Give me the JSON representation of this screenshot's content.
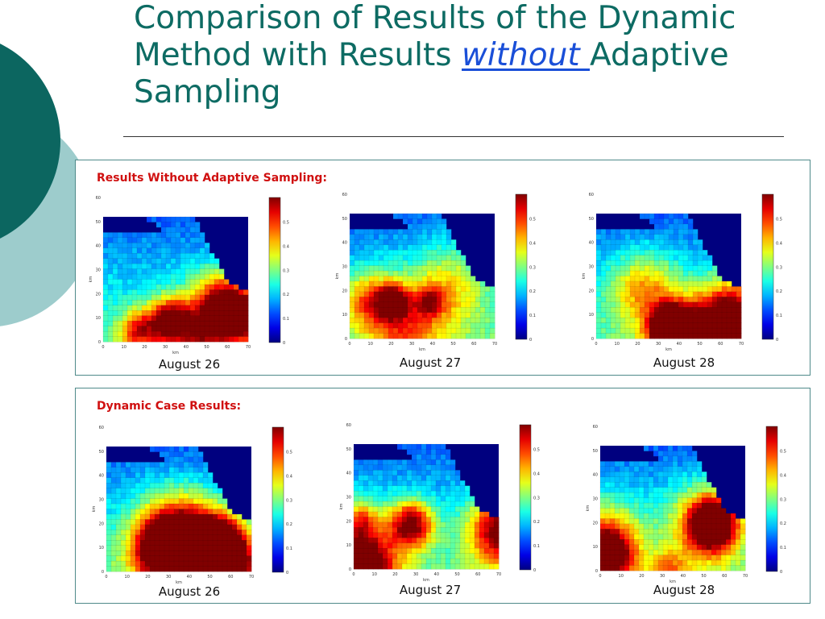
{
  "slide": {
    "title_lead": "Comparison of Results of the Dynamic Method with Results ",
    "title_emph": "without ",
    "title_tail": "Adaptive Sampling"
  },
  "panels": [
    {
      "heading": "Results Without Adaptive Sampling:",
      "maps": [
        {
          "caption": "August 26",
          "y_ticks": [
            "60",
            "50",
            "40",
            "30",
            "20",
            "10",
            "0"
          ],
          "x_ticks": [
            "0",
            "10",
            "20",
            "30",
            "40",
            "50",
            "60",
            "70"
          ],
          "xlabel": "km",
          "ylabel": "km",
          "colorbar_ticks": [
            "0.5",
            "0.4",
            "0.3",
            "0.2",
            "0.1",
            "0"
          ]
        },
        {
          "caption": "August 27",
          "y_ticks": [
            "60",
            "50",
            "40",
            "30",
            "20",
            "10",
            "0"
          ],
          "x_ticks": [
            "0",
            "10",
            "20",
            "30",
            "40",
            "50",
            "60",
            "70"
          ],
          "xlabel": "km",
          "ylabel": "km",
          "colorbar_ticks": [
            "0.5",
            "0.4",
            "0.3",
            "0.2",
            "0.1",
            "0"
          ]
        },
        {
          "caption": "August 28",
          "y_ticks": [
            "60",
            "50",
            "40",
            "30",
            "20",
            "10",
            "0"
          ],
          "x_ticks": [
            "0",
            "10",
            "20",
            "30",
            "40",
            "50",
            "60",
            "70"
          ],
          "xlabel": "km",
          "ylabel": "km",
          "colorbar_ticks": [
            "0.5",
            "0.4",
            "0.3",
            "0.2",
            "0.1",
            "0"
          ]
        }
      ]
    },
    {
      "heading": "Dynamic Case Results:",
      "maps": [
        {
          "caption": "August 26",
          "y_ticks": [
            "60",
            "50",
            "40",
            "30",
            "20",
            "10",
            "0"
          ],
          "x_ticks": [
            "0",
            "10",
            "20",
            "30",
            "40",
            "50",
            "60",
            "70"
          ],
          "xlabel": "km",
          "ylabel": "km",
          "colorbar_ticks": [
            "0.5",
            "0.4",
            "0.3",
            "0.2",
            "0.1",
            "0"
          ]
        },
        {
          "caption": "August 27",
          "y_ticks": [
            "60",
            "50",
            "40",
            "30",
            "20",
            "10",
            "0"
          ],
          "x_ticks": [
            "0",
            "10",
            "20",
            "30",
            "40",
            "50",
            "60",
            "70"
          ],
          "xlabel": "km",
          "ylabel": "km",
          "colorbar_ticks": [
            "0.5",
            "0.4",
            "0.3",
            "0.2",
            "0.1",
            "0"
          ]
        },
        {
          "caption": "August 28",
          "y_ticks": [
            "60",
            "50",
            "40",
            "30",
            "20",
            "10",
            "0"
          ],
          "x_ticks": [
            "0",
            "10",
            "20",
            "30",
            "40",
            "50",
            "60",
            "70"
          ],
          "xlabel": "km",
          "ylabel": "km",
          "colorbar_ticks": [
            "0.5",
            "0.4",
            "0.3",
            "0.2",
            "0.1",
            "0"
          ]
        }
      ]
    }
  ],
  "colors": {
    "title": "#0d6b63",
    "heading": "#d01010",
    "deco_dark": "#0c6660",
    "deco_light": "#9dcccc",
    "panel_border": "#4f8a8a",
    "map_background": "#00007f"
  }
}
